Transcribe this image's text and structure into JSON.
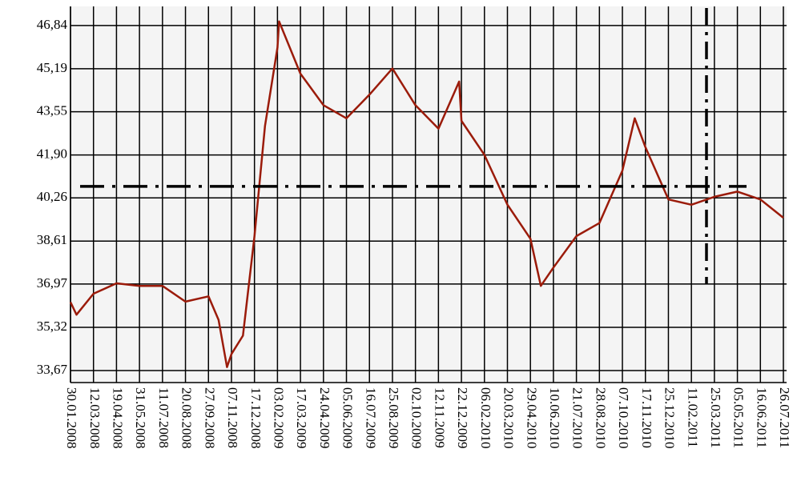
{
  "chart_data": {
    "type": "line",
    "x": [
      "30.01.2008",
      "10.02.2008",
      "12.03.2008",
      "19.04.2008",
      "31.05.2008",
      "11.07.2008",
      "20.08.2008",
      "27.09.2008",
      "15.10.2008",
      "30.10.2008",
      "07.11.2008",
      "27.11.2008",
      "17.12.2008",
      "08.01.2009",
      "03.02.2009",
      "06.02.2009",
      "17.03.2009",
      "24.04.2009",
      "05.06.2009",
      "16.07.2009",
      "25.08.2009",
      "02.10.2009",
      "12.11.2009",
      "18.12.2009",
      "22.12.2009",
      "06.02.2010",
      "20.03.2010",
      "29.04.2010",
      "18.05.2010",
      "10.06.2010",
      "21.07.2010",
      "28.08.2010",
      "07.10.2010",
      "29.10.2010",
      "17.11.2010",
      "25.12.2010",
      "11.02.2011",
      "25.03.2011",
      "05.05.2011",
      "16.06.2011",
      "26.07.2011"
    ],
    "series": [
      {
        "color": "#9b1b0a",
        "values": [
          36.28,
          35.8,
          36.6,
          37.0,
          36.9,
          36.9,
          36.3,
          36.5,
          35.6,
          33.8,
          34.3,
          35.0,
          38.8,
          43.0,
          46.0,
          47.0,
          45.0,
          43.8,
          43.3,
          44.2,
          45.2,
          43.8,
          42.9,
          44.7,
          43.2,
          41.9,
          40.0,
          38.7,
          36.9,
          37.6,
          38.8,
          39.3,
          41.3,
          43.3,
          42.2,
          40.2,
          40.0,
          40.3,
          40.5,
          40.2,
          39.5
        ]
      }
    ],
    "hline": 40.7,
    "ylim": [
      33.21,
      47.57
    ],
    "yticks": [
      {
        "value": 33.67,
        "label": "33,67"
      },
      {
        "value": 35.32,
        "label": "35,32"
      },
      {
        "value": 36.97,
        "label": "36,97"
      },
      {
        "value": 38.61,
        "label": "38,61"
      },
      {
        "value": 40.26,
        "label": "40,26"
      },
      {
        "value": 41.9,
        "label": "41,90"
      },
      {
        "value": 43.55,
        "label": "43,55"
      },
      {
        "value": 45.19,
        "label": "45,19"
      },
      {
        "value": 46.84,
        "label": "46,84"
      }
    ],
    "xticks": [
      "30.01.2008",
      "12.03.2008",
      "19.04.2008",
      "31.05.2008",
      "11.07.2008",
      "20.08.2008",
      "27.09.2008",
      "07.11.2008",
      "17.12.2008",
      "03.02.2009",
      "17.03.2009",
      "24.04.2009",
      "05.06.2009",
      "16.07.2009",
      "25.08.2009",
      "02.10.2009",
      "12.11.2009",
      "22.12.2009",
      "06.02.2010",
      "20.03.2010",
      "29.04.2010",
      "10.06.2010",
      "21.07.2010",
      "28.08.2010",
      "07.10.2010",
      "17.11.2010",
      "25.12.2010",
      "11.02.2011",
      "25.03.2011",
      "05.05.2011",
      "16.06.2011",
      "26.07.2011"
    ],
    "grid": true
  }
}
